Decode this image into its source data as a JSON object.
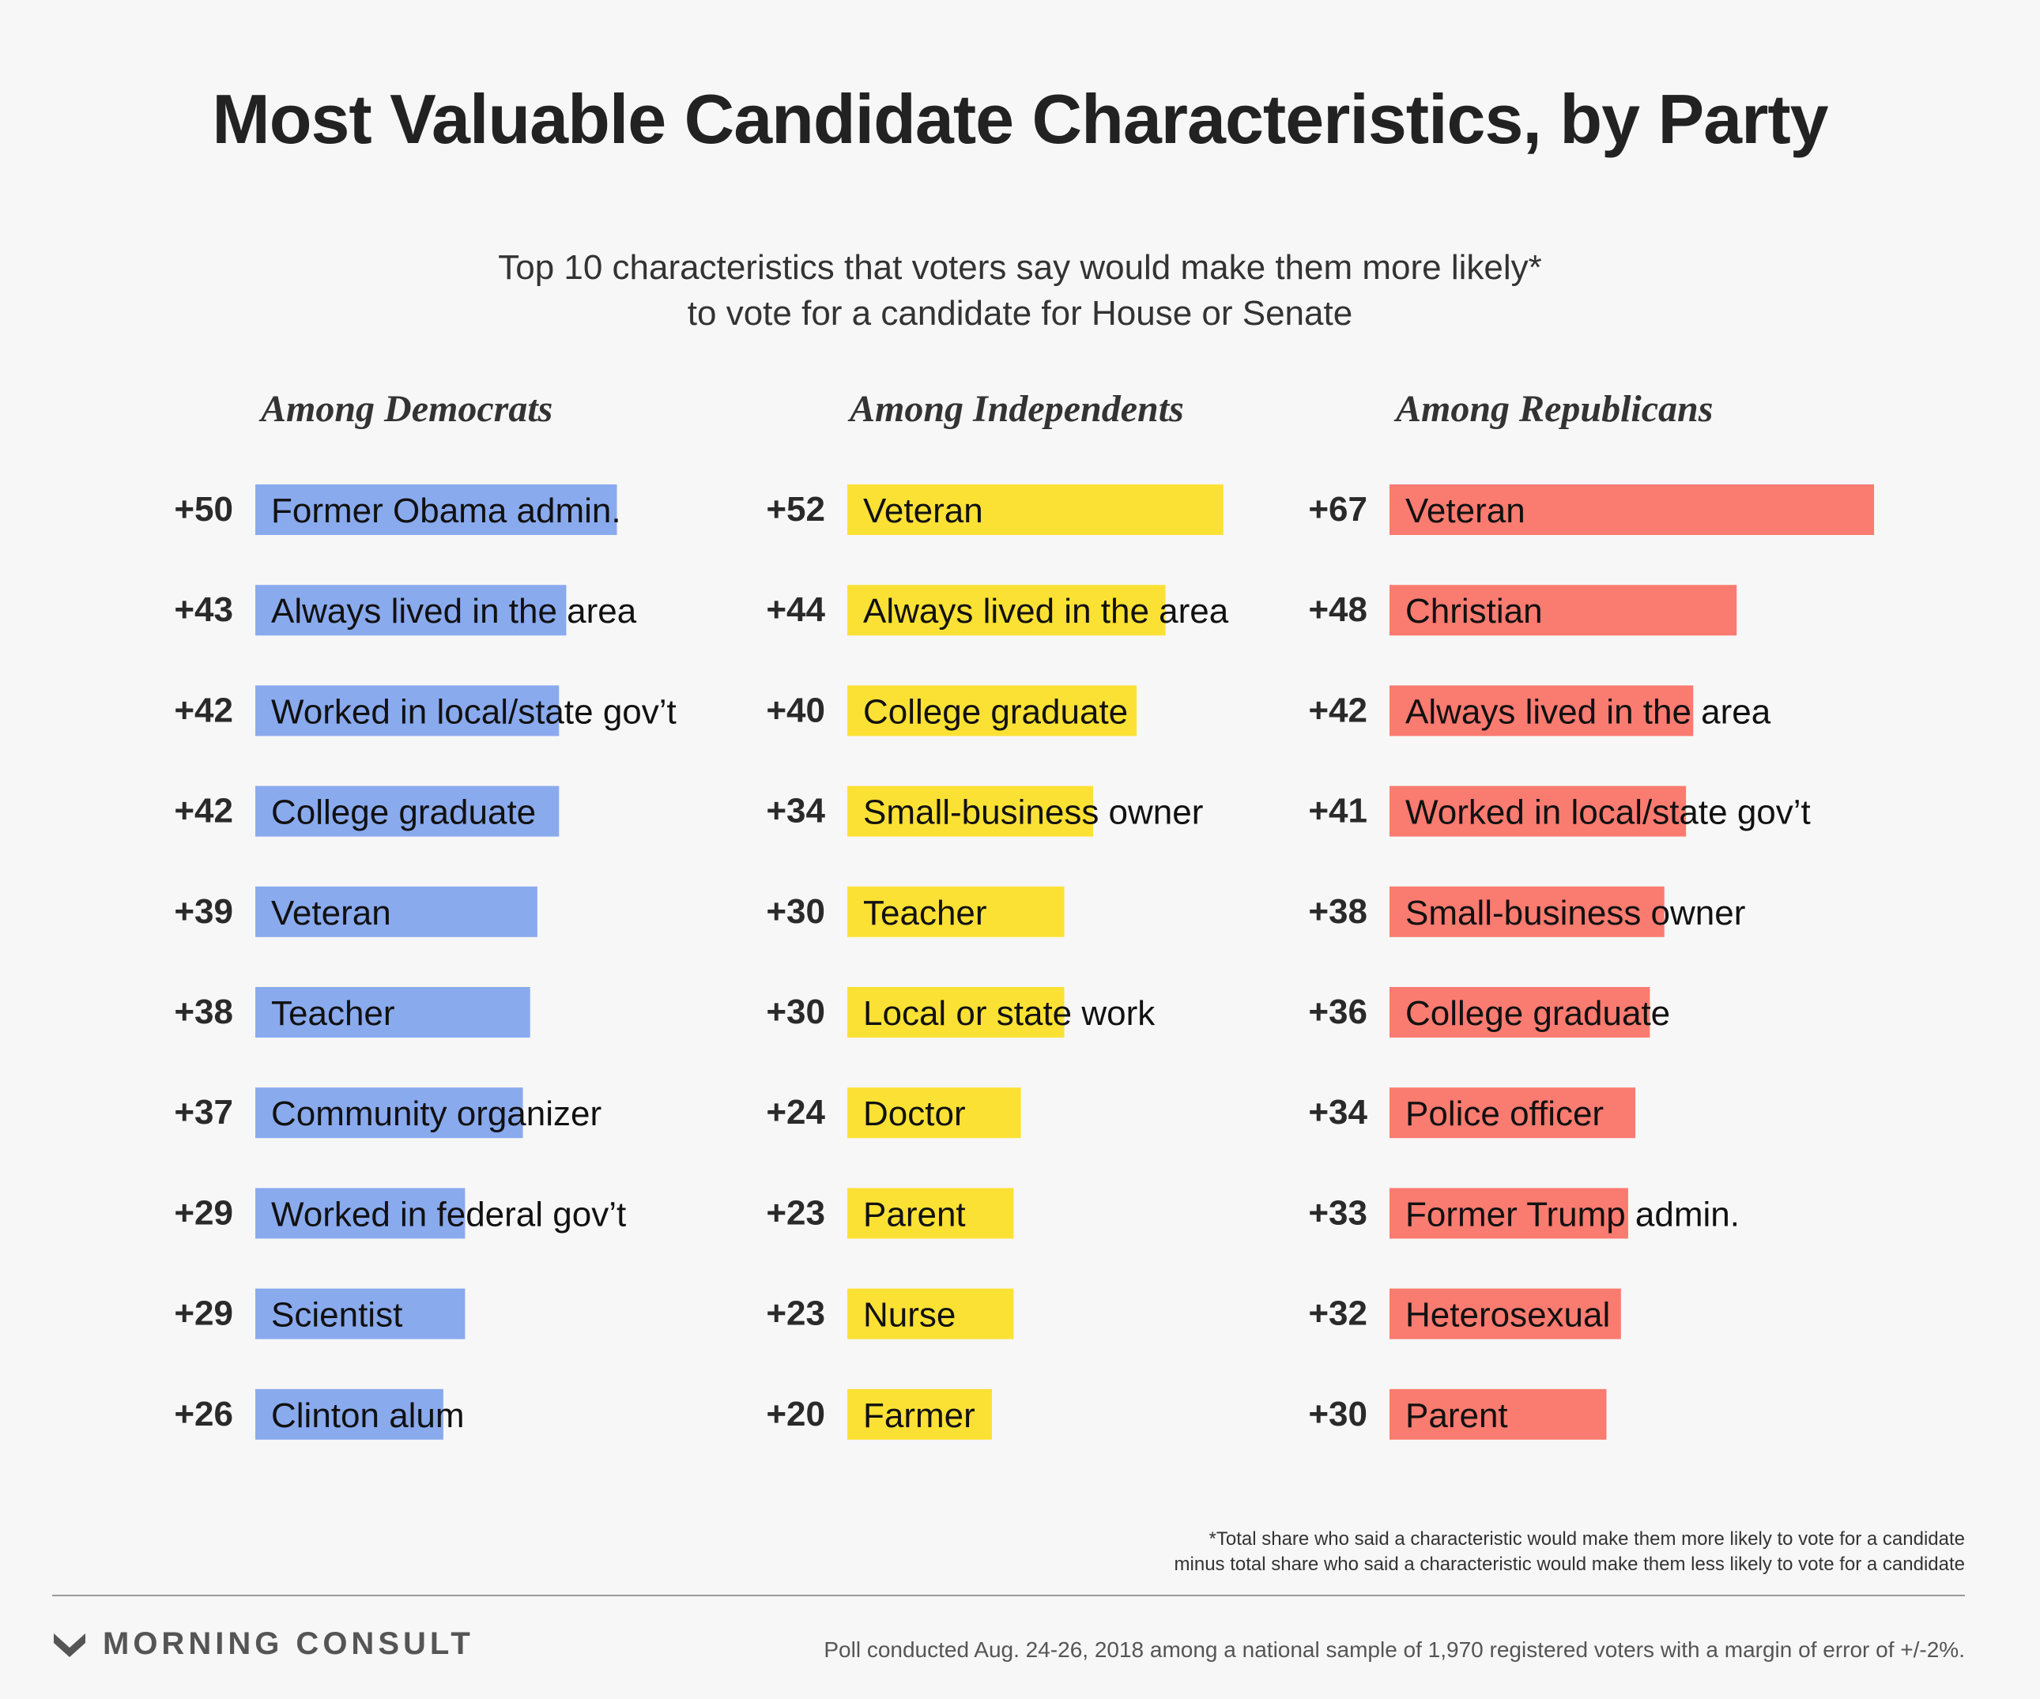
{
  "header": {
    "title": "Most Valuable Candidate Characteristics, by Party",
    "subtitle_line1": "Top 10 characteristics that voters say would make them more likely*",
    "subtitle_line2": "to vote for a candidate for House or Senate"
  },
  "chart_data": [
    {
      "type": "bar",
      "orientation": "horizontal",
      "title": "Among Democrats",
      "color": "#8aaaee",
      "categories": [
        "Former Obama admin.",
        "Always lived in the area",
        "Worked in local/state gov’t",
        "College graduate",
        "Veteran",
        "Teacher",
        "Community organizer",
        "Worked in federal gov’t",
        "Scientist",
        "Clinton alum"
      ],
      "values": [
        50,
        43,
        42,
        42,
        39,
        38,
        37,
        29,
        29,
        26
      ],
      "value_labels": [
        "+50",
        "+43",
        "+42",
        "+42",
        "+39",
        "+38",
        "+37",
        "+29",
        "+29",
        "+26"
      ]
    },
    {
      "type": "bar",
      "orientation": "horizontal",
      "title": "Among Independents",
      "color": "#fce135",
      "categories": [
        "Veteran",
        "Always lived in the area",
        "College graduate",
        "Small-business owner",
        "Teacher",
        "Local or state work",
        "Doctor",
        "Parent",
        "Nurse",
        "Farmer"
      ],
      "values": [
        52,
        44,
        40,
        34,
        30,
        30,
        24,
        23,
        23,
        20
      ],
      "value_labels": [
        "+52",
        "+44",
        "+40",
        "+34",
        "+30",
        "+30",
        "+24",
        "+23",
        "+23",
        "+20"
      ]
    },
    {
      "type": "bar",
      "orientation": "horizontal",
      "title": "Among Republicans",
      "color": "#fa7b70",
      "categories": [
        "Veteran",
        "Christian",
        "Always lived in the area",
        "Worked in local/state gov’t",
        "Small-business owner",
        "College graduate",
        "Police officer",
        "Former Trump admin.",
        "Heterosexual",
        "Parent"
      ],
      "values": [
        67,
        48,
        42,
        41,
        38,
        36,
        34,
        33,
        32,
        30
      ],
      "value_labels": [
        "+67",
        "+48",
        "+42",
        "+41",
        "+38",
        "+36",
        "+34",
        "+33",
        "+32",
        "+30"
      ]
    }
  ],
  "footer": {
    "footnote_line1": "*Total share who said a characteristic would make them more likely to vote for a candidate",
    "footnote_line2": "minus total share who said a characteristic would make them less likely to vote for a candidate",
    "brand": "MORNING CONSULT",
    "brand_icon": "morning-consult-logo-icon",
    "source": "Poll conducted Aug. 24-26, 2018 among a national sample of 1,970 registered voters with a margin of error of +/-2%."
  }
}
